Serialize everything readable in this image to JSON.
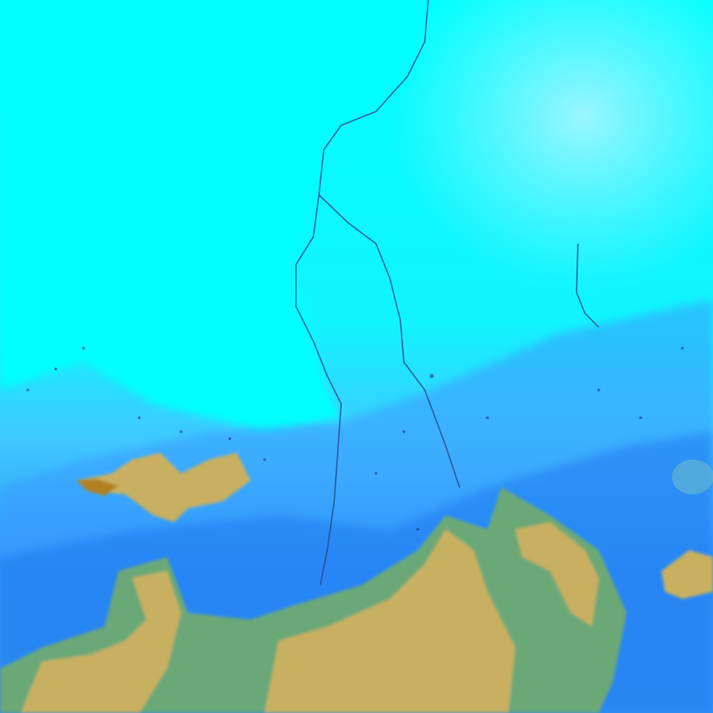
{
  "image": {
    "kind": "false-color satellite imagery",
    "colors": {
      "snow_cloud": "#00ffff",
      "pale_cyan": "#a8f4ff",
      "mid_blue": "#3aa0ff",
      "deep_blue": "#1e78f0",
      "land_tan": "#c8b060",
      "land_green": "#6aa878",
      "river": "#2a4a8a",
      "peaks": "#b08020"
    }
  }
}
